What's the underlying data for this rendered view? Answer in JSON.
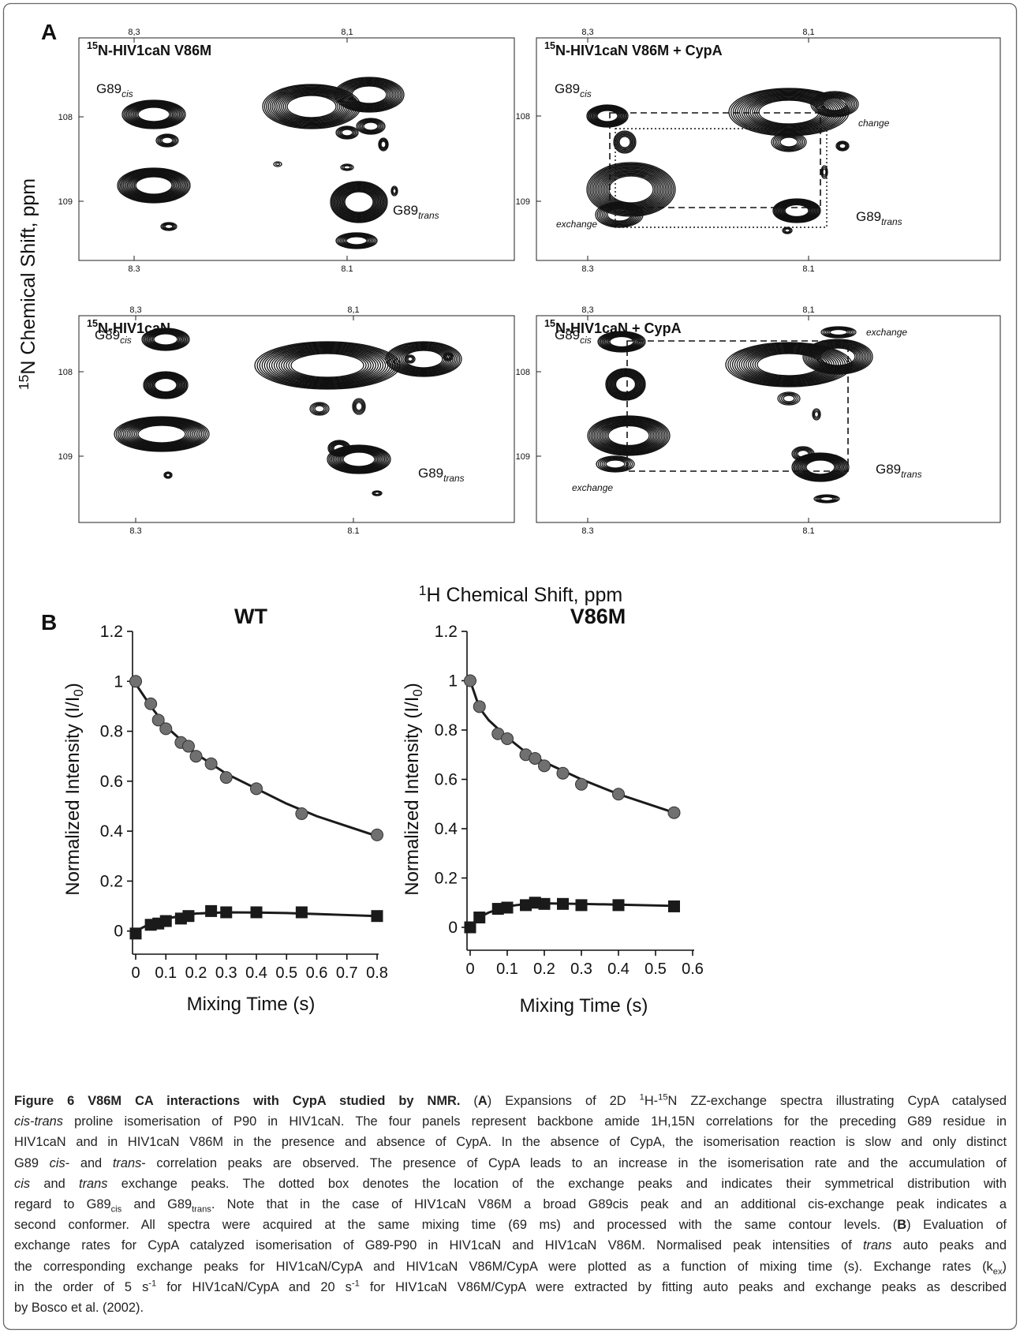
{
  "panel_a": {
    "label": "A",
    "ylabel": {
      "sup": "15",
      "text": "N Chemical Shift, ppm"
    },
    "xlabel": {
      "sup": "1",
      "text": "H Chemical Shift, ppm"
    },
    "spectra": [
      {
        "title": {
          "sup": "15",
          "text": "N-HIV1caN V86M"
        },
        "top_ticks": [
          "8,3",
          "8,1"
        ],
        "bottom_ticks": [
          "8.3",
          "8.1"
        ],
        "left_ticks": [
          "108",
          "109"
        ],
        "peak_labels": [
          {
            "text": "G89",
            "sub": "cis"
          },
          {
            "text": "G89",
            "sub": "trans"
          }
        ]
      },
      {
        "title": {
          "sup": "15",
          "text": "N-HIV1caN V86M + CypA"
        },
        "top_ticks": [
          "8,3",
          "8,1"
        ],
        "bottom_ticks": [
          "8.3",
          "8.1"
        ],
        "left_ticks": [
          "108",
          "109"
        ],
        "peak_labels": [
          {
            "text": "G89",
            "sub": "cis"
          },
          {
            "text": "G89",
            "sub": "trans"
          }
        ],
        "exchange_labels": [
          "change",
          "exchange"
        ]
      },
      {
        "title": {
          "sup": "15",
          "text": "N-HIV1caN"
        },
        "top_ticks": [
          "8,3",
          "8,1"
        ],
        "bottom_ticks": [
          "8.3",
          "8.1"
        ],
        "left_ticks": [
          "108",
          "109"
        ],
        "peak_labels": [
          {
            "text": "G89",
            "sub": "cis"
          },
          {
            "text": "G89",
            "sub": "trans"
          }
        ]
      },
      {
        "title": {
          "sup": "15",
          "text": "N-HIV1caN + CypA"
        },
        "top_ticks": [
          "8,3",
          "8,1"
        ],
        "bottom_ticks": [
          "8.3",
          "8.1"
        ],
        "left_ticks": [
          "108",
          "109"
        ],
        "peak_labels": [
          {
            "text": "G89",
            "sub": "cis"
          },
          {
            "text": "G89",
            "sub": "trans"
          }
        ],
        "exchange_labels": [
          "exchange",
          "exchange"
        ]
      }
    ]
  },
  "panel_b": {
    "label": "B"
  },
  "chart_data": [
    {
      "type": "scatter",
      "title": "WT",
      "xlabel": "Mixing Time (s)",
      "ylabel": {
        "text": "Normalized Intensity (I/I",
        "sub": "0",
        "suffix": ")"
      },
      "xlim": [
        0,
        0.8
      ],
      "ylim": [
        -0.08,
        1.2
      ],
      "xticks": [
        0,
        0.1,
        0.2,
        0.3,
        0.4,
        0.5,
        0.6,
        0.7,
        0.8
      ],
      "yticks": [
        0,
        0.2,
        0.4,
        0.6,
        0.8,
        1,
        1.2
      ],
      "series": [
        {
          "marker": "line",
          "color": "#1a1a1a",
          "x": [
            0,
            0.05,
            0.1,
            0.2,
            0.3,
            0.4,
            0.5,
            0.6,
            0.7,
            0.8
          ],
          "values": [
            0.99,
            0.9,
            0.82,
            0.71,
            0.63,
            0.57,
            0.51,
            0.46,
            0.42,
            0.38
          ]
        },
        {
          "marker": "line",
          "color": "#1a1a1a",
          "x": [
            0,
            0.05,
            0.1,
            0.2,
            0.3,
            0.4,
            0.5,
            0.6,
            0.7,
            0.8
          ],
          "values": [
            0,
            0.03,
            0.05,
            0.07,
            0.075,
            0.074,
            0.072,
            0.068,
            0.064,
            0.06
          ]
        },
        {
          "marker": "circle",
          "color": "#707070",
          "x": [
            0,
            0.05,
            0.075,
            0.1,
            0.15,
            0.175,
            0.2,
            0.25,
            0.3,
            0.4,
            0.55,
            0.8
          ],
          "values": [
            1,
            0.91,
            0.845,
            0.81,
            0.755,
            0.74,
            0.7,
            0.67,
            0.615,
            0.57,
            0.47,
            0.385
          ]
        },
        {
          "marker": "square",
          "color": "#1a1a1a",
          "x": [
            0,
            0.05,
            0.075,
            0.1,
            0.15,
            0.175,
            0.25,
            0.3,
            0.4,
            0.55,
            0.8
          ],
          "values": [
            -0.01,
            0.025,
            0.03,
            0.04,
            0.05,
            0.06,
            0.08,
            0.075,
            0.075,
            0.075,
            0.06
          ]
        }
      ]
    },
    {
      "type": "scatter",
      "title": "V86M",
      "xlabel": "Mixing Time (s)",
      "ylabel": {
        "text": "Normalized Intensity (I/I",
        "sub": "0",
        "suffix": ")"
      },
      "xlim": [
        0,
        0.6
      ],
      "ylim": [
        -0.08,
        1.2
      ],
      "xticks": [
        0,
        0.1,
        0.2,
        0.3,
        0.4,
        0.5,
        0.6
      ],
      "yticks": [
        0,
        0.2,
        0.4,
        0.6,
        0.8,
        1,
        1.2
      ],
      "series": [
        {
          "marker": "line",
          "color": "#1a1a1a",
          "x": [
            0,
            0.025,
            0.05,
            0.1,
            0.15,
            0.2,
            0.3,
            0.4,
            0.55
          ],
          "values": [
            1,
            0.89,
            0.84,
            0.77,
            0.71,
            0.67,
            0.6,
            0.54,
            0.465
          ]
        },
        {
          "marker": "line",
          "color": "#1a1a1a",
          "x": [
            0,
            0.03,
            0.05,
            0.1,
            0.15,
            0.2,
            0.3,
            0.4,
            0.55
          ],
          "values": [
            0,
            0.045,
            0.06,
            0.085,
            0.095,
            0.097,
            0.095,
            0.092,
            0.087
          ]
        },
        {
          "marker": "circle",
          "color": "#707070",
          "x": [
            0,
            0.025,
            0.075,
            0.1,
            0.15,
            0.175,
            0.2,
            0.25,
            0.3,
            0.4,
            0.55
          ],
          "values": [
            1,
            0.895,
            0.785,
            0.765,
            0.7,
            0.685,
            0.655,
            0.625,
            0.58,
            0.54,
            0.465
          ]
        },
        {
          "marker": "square",
          "color": "#1a1a1a",
          "x": [
            0,
            0.025,
            0.075,
            0.1,
            0.15,
            0.175,
            0.2,
            0.25,
            0.3,
            0.4,
            0.55
          ],
          "values": [
            0,
            0.04,
            0.075,
            0.08,
            0.09,
            0.1,
            0.095,
            0.095,
            0.09,
            0.09,
            0.085
          ]
        }
      ]
    }
  ],
  "caption": {
    "lines": [
      [
        {
          "text": "Figure 6 V86M CA interactions with CypA studied by NMR.",
          "style": "bold"
        },
        " (",
        {
          "text": "A",
          "style": "bold"
        },
        ") Expansions of 2D ",
        {
          "text": "1",
          "style": "sup"
        },
        "H-",
        {
          "text": "15",
          "style": "sup"
        },
        "N ZZ-exchange spectra illustrating CypA catalysed"
      ],
      [
        {
          "text": "cis-trans",
          "style": "italic"
        },
        " proline isomerisation of P90 in HIV1caN. The four panels represent backbone amide 1H,15N correlations for the preceding G89 residue in"
      ],
      [
        "HIV1caN and in HIV1caN V86M in the presence and absence of CypA. In the absence of CypA, the isomerisation reaction is slow and only distinct"
      ],
      [
        "G89 ",
        {
          "text": "cis",
          "style": "italic"
        },
        "- and ",
        {
          "text": "trans",
          "style": "italic"
        },
        "- correlation peaks are observed. The presence of CypA leads to an increase in the isomerisation rate and the accumulation of"
      ],
      [
        {
          "text": "cis",
          "style": "italic"
        },
        " and ",
        {
          "text": "trans",
          "style": "italic"
        },
        " exchange peaks. The dotted box denotes the location of the exchange peaks and indicates their symmetrical distribution with"
      ],
      [
        "regard to G89",
        {
          "text": "cis",
          "style": "sub"
        },
        " and G89",
        {
          "text": "trans",
          "style": "sub"
        },
        ". Note that in the case of HIV1caN V86M a broad G89cis peak and an additional cis-exchange peak indicates a"
      ],
      [
        "second conformer. All spectra were acquired at the same mixing time (69 ms) and processed with the same contour levels. (",
        {
          "text": "B",
          "style": "bold"
        },
        ") Evaluation of"
      ],
      [
        "exchange rates for CypA catalyzed isomerisation of G89-P90 in HIV1caN and HIV1caN V86M. Normalised peak intensities of ",
        {
          "text": "trans",
          "style": "italic"
        },
        " auto peaks and"
      ],
      [
        "the corresponding exchange peaks for HIV1caN/CypA and HIV1caN V86M/CypA were plotted as a function of mixing time (s). Exchange rates (k",
        {
          "text": "ex",
          "style": "sub"
        },
        ")"
      ],
      [
        "in the order of 5 s",
        {
          "text": "-1",
          "style": "sup"
        },
        " for HIV1caN/CypA and 20 s",
        {
          "text": "-1",
          "style": "sup"
        },
        " for HIV1caN V86M/CypA were extracted by fitting auto peaks and exchange peaks as described"
      ],
      [
        "by Bosco et al. (2002)."
      ]
    ]
  }
}
